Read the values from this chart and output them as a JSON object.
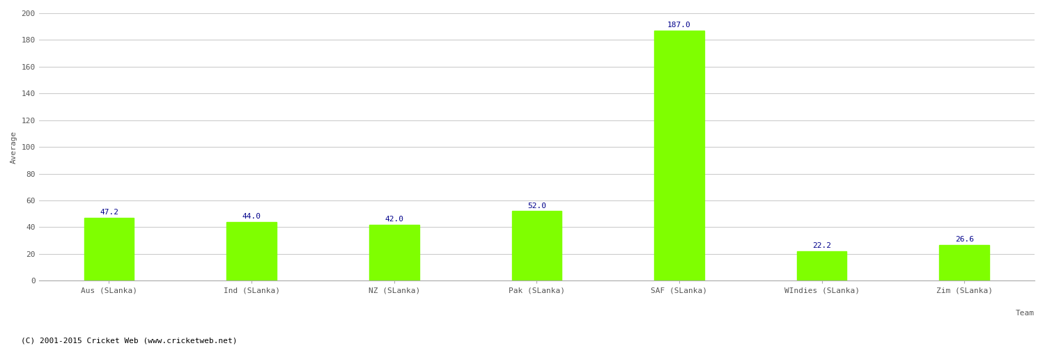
{
  "categories": [
    "Aus (SLanka)",
    "Ind (SLanka)",
    "NZ (SLanka)",
    "Pak (SLanka)",
    "SAF (SLanka)",
    "WIndies (SLanka)",
    "Zim (SLanka)"
  ],
  "values": [
    47.2,
    44.0,
    42.0,
    52.0,
    187.0,
    22.2,
    26.6
  ],
  "bar_color": "#7FFF00",
  "bar_edge_color": "#7FFF00",
  "label_color": "#00008B",
  "ylabel": "Average",
  "xlabel": "Team",
  "ylim": [
    0,
    200
  ],
  "yticks": [
    0,
    20,
    40,
    60,
    80,
    100,
    120,
    140,
    160,
    180,
    200
  ],
  "title": "",
  "footer": "(C) 2001-2015 Cricket Web (www.cricketweb.net)",
  "background_color": "#ffffff",
  "grid_color": "#cccccc",
  "label_fontsize": 8,
  "axis_label_fontsize": 8,
  "tick_fontsize": 8,
  "footer_fontsize": 8,
  "bar_width": 0.35
}
